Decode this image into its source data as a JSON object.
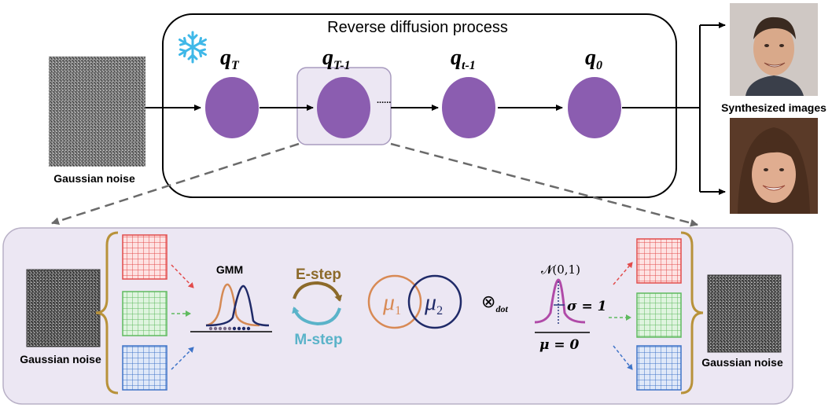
{
  "top": {
    "title": "Reverse diffusion process",
    "input_label": "Gaussian noise",
    "output_label": "Synthesized images",
    "nodes": [
      {
        "base": "q",
        "sub": "T"
      },
      {
        "base": "q",
        "sub": "T-1"
      },
      {
        "base": "q",
        "sub": "t-1"
      },
      {
        "base": "q",
        "sub": "0"
      }
    ],
    "ellipsis": "......",
    "frozen_icon": "snowflake-icon",
    "photo_icons": [
      "face-photo-male-icon",
      "face-photo-female-icon"
    ]
  },
  "bottom": {
    "left_noise_label": "Gaussian noise",
    "right_noise_label": "Gaussian noise",
    "gmm_label": "GMM",
    "e_step": "E-step",
    "m_step": "M-step",
    "mu1": {
      "base": "μ",
      "sub": "1"
    },
    "mu2": {
      "base": "μ",
      "sub": "2"
    },
    "otimes_dot": {
      "symbol": "⊗",
      "sub": "dot"
    },
    "normal": "𝓝(0,1)",
    "sigma": "σ = 1",
    "mu_zero": "μ = 0"
  },
  "colors": {
    "node_purple": "#8b5db0",
    "panel_fill": "#ece7f3",
    "grid_red": "#e24b4b",
    "grid_green": "#5fba5f",
    "grid_blue": "#3f74c8",
    "bracket_gold": "#b8923a",
    "gmm_orange": "#d58a55",
    "gmm_navy": "#1f2a68",
    "e_step_brown": "#8c6a2a",
    "m_step_teal": "#5ab3c9",
    "mu1_orange": "#d88a55",
    "mu2_navy": "#1f2a68",
    "normal_magenta": "#b04aa8",
    "snowflake_blue": "#3fb8e8"
  }
}
